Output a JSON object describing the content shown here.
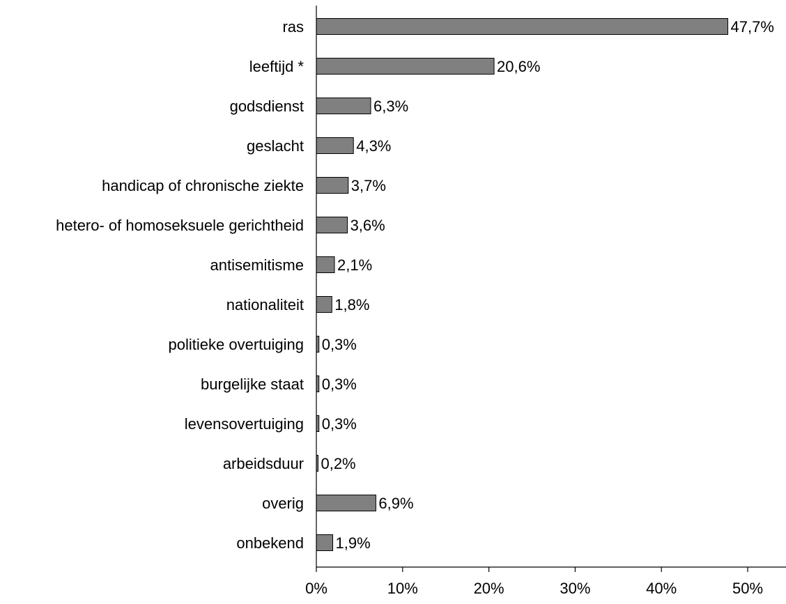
{
  "chart_data": {
    "type": "bar",
    "orientation": "horizontal",
    "title": "",
    "xlabel": "",
    "ylabel": "",
    "categories": [
      "ras",
      "leeftijd *",
      "godsdienst",
      "geslacht",
      "handicap of chronische ziekte",
      "hetero- of homoseksuele gerichtheid",
      "antisemitisme",
      "nationaliteit",
      "politieke overtuiging",
      "burgelijke staat",
      "levensovertuiging",
      "arbeidsduur",
      "overig",
      "onbekend"
    ],
    "values": [
      47.7,
      20.6,
      6.3,
      4.3,
      3.7,
      3.6,
      2.1,
      1.8,
      0.3,
      0.3,
      0.3,
      0.2,
      6.9,
      1.9
    ],
    "data_labels": [
      "47,7%",
      "20,6%",
      "6,3%",
      "4,3%",
      "3,7%",
      "3,6%",
      "2,1%",
      "1,8%",
      "0,3%",
      "0,3%",
      "0,3%",
      "0,2%",
      "6,9%",
      "1,9%"
    ],
    "xlim": [
      0,
      55
    ],
    "x_ticks": [
      0,
      10,
      20,
      30,
      40,
      50
    ],
    "x_tick_labels": [
      "0%",
      "10%",
      "20%",
      "30%",
      "40%",
      "50%"
    ],
    "grid": false,
    "legend": "none",
    "colors": {
      "bar_fill": "#808080",
      "bar_stroke": "#000000",
      "axis": "#000000",
      "text": "#000000",
      "background": "#ffffff"
    }
  }
}
